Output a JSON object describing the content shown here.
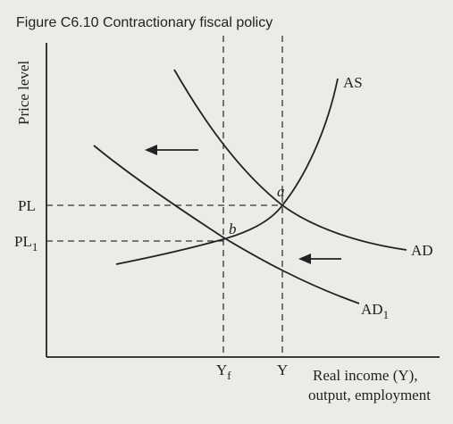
{
  "title": "Figure C6.10  Contractionary fiscal policy",
  "y_axis_label": "Price level",
  "x_axis_label": [
    "Real income (Y),",
    "output, employment"
  ],
  "y_labels": {
    "pl": "PL",
    "pl1": {
      "text": "PL",
      "sub": "1"
    }
  },
  "x_labels": {
    "yf": {
      "text": "Y",
      "sub": "f"
    },
    "y": "Y"
  },
  "curves": {
    "as": "AS",
    "ad": "AD",
    "ad1": {
      "text": "AD",
      "sub": "1"
    }
  },
  "points": {
    "a": "a",
    "b": "b"
  }
}
